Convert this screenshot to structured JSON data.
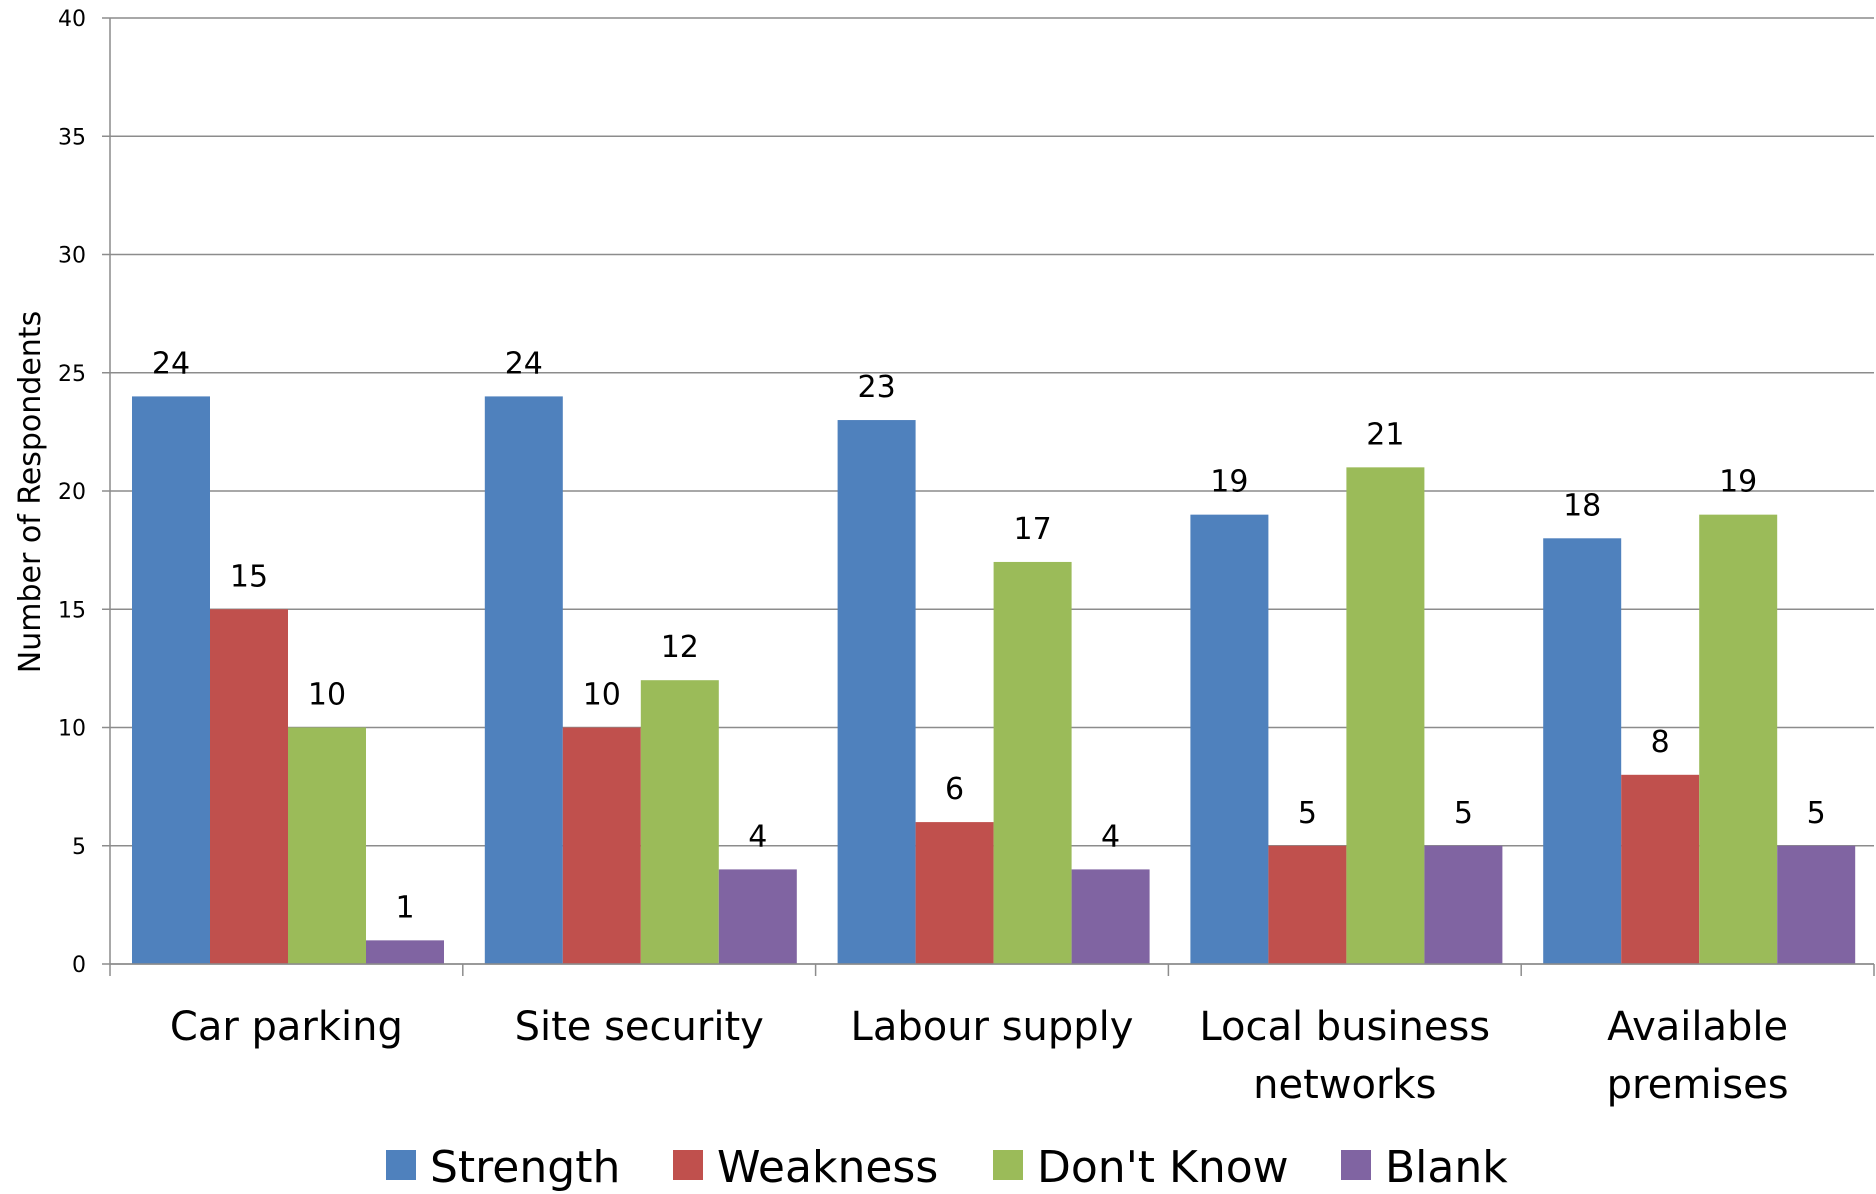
{
  "chart_data": {
    "type": "bar",
    "title": "",
    "xlabel": "",
    "ylabel": "Number of Respondents",
    "ylim": [
      0,
      40
    ],
    "yticks": [
      0,
      5,
      10,
      15,
      20,
      25,
      30,
      35,
      40
    ],
    "grid": true,
    "legend_position": "bottom",
    "categories": [
      [
        "Car parking"
      ],
      [
        "Site security"
      ],
      [
        "Labour supply"
      ],
      [
        "Local business",
        "networks"
      ],
      [
        "Available",
        "premises"
      ]
    ],
    "series": [
      {
        "name": "Strength",
        "color": "#4F81BD",
        "values": [
          24,
          24,
          23,
          19,
          18
        ]
      },
      {
        "name": "Weakness",
        "color": "#C0504D",
        "values": [
          15,
          10,
          6,
          5,
          8
        ]
      },
      {
        "name": "Don't Know",
        "color": "#9BBB59",
        "values": [
          10,
          12,
          17,
          21,
          19
        ]
      },
      {
        "name": "Blank",
        "color": "#8064A2",
        "values": [
          1,
          4,
          4,
          5,
          5
        ]
      }
    ]
  }
}
